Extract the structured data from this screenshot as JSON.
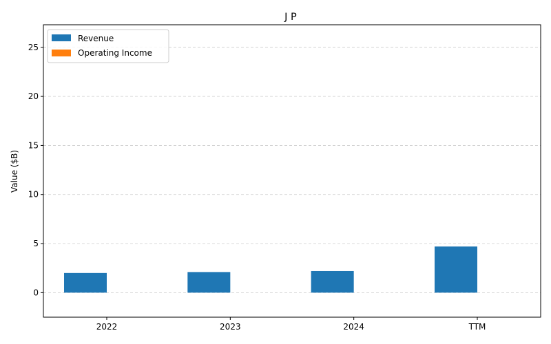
{
  "chart_data": {
    "type": "bar",
    "title": "J P",
    "xlabel": "",
    "ylabel": "Value ($B)",
    "categories": [
      "2022",
      "2023",
      "2024",
      "TTM"
    ],
    "series": [
      {
        "name": "Revenue",
        "color": "#1f77b4",
        "values": [
          2.0,
          2.1,
          2.2,
          4.7
        ]
      },
      {
        "name": "Operating Income",
        "color": "#ff7f0e",
        "values": [
          0,
          0,
          0,
          0
        ]
      }
    ],
    "ylim": [
      -2.5,
      27.3
    ],
    "yticks": [
      0,
      5,
      10,
      15,
      20,
      25
    ],
    "grid": "y-dashed",
    "legend_position": "top-left"
  }
}
